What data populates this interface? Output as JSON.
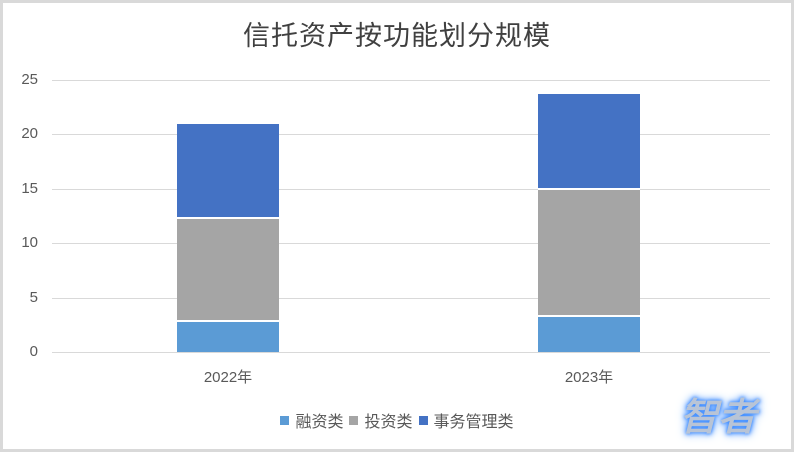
{
  "chart_data": {
    "type": "bar",
    "stacked": true,
    "title": "信托资产按功能划分规模",
    "xlabel": "",
    "ylabel": "",
    "categories": [
      "2022年",
      "2023年"
    ],
    "series": [
      {
        "name": "融资类",
        "color": "#5b9bd5",
        "values": [
          2.9,
          3.4
        ]
      },
      {
        "name": "投资类",
        "color": "#a5a5a5",
        "values": [
          9.5,
          11.7
        ]
      },
      {
        "name": "事务管理类",
        "color": "#4472c4",
        "values": [
          8.7,
          8.8
        ]
      }
    ],
    "ylim": [
      0,
      25
    ],
    "yticks": [
      "0",
      "5",
      "10",
      "15",
      "20",
      "25"
    ],
    "grid": true,
    "legend_position": "bottom"
  },
  "watermark": "智者"
}
